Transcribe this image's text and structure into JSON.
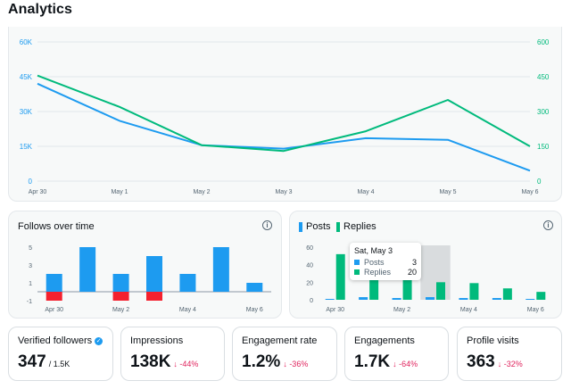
{
  "page": {
    "title": "Analytics"
  },
  "colors": {
    "blue": "#1d9bf0",
    "green": "#00ba7c",
    "red": "#f4212e",
    "grid": "#e1e6ea",
    "axis_text": "#536471"
  },
  "main_chart": {
    "left_ticks": [
      "60K",
      "45K",
      "30K",
      "15K",
      "0"
    ],
    "right_ticks": [
      "600",
      "450",
      "300",
      "150",
      "0"
    ],
    "x_labels": [
      "Apr 30",
      "May 1",
      "May 2",
      "May 3",
      "May 4",
      "May 5",
      "May 6"
    ]
  },
  "follows_card": {
    "title": "Follows over time",
    "y_ticks": [
      "5",
      "3",
      "1",
      "-1"
    ],
    "x_labels": [
      "Apr 30",
      "May 2",
      "May 4",
      "May 6"
    ]
  },
  "posts_card": {
    "legend_posts": "Posts",
    "legend_replies": "Replies",
    "y_ticks": [
      "60",
      "40",
      "20",
      "0"
    ],
    "x_labels": [
      "Apr 30",
      "May 2",
      "May 4",
      "May 6"
    ],
    "tooltip": {
      "title": "Sat, May 3",
      "posts_label": "Posts",
      "posts_value": "3",
      "replies_label": "Replies",
      "replies_value": "20"
    }
  },
  "stats": {
    "verified": {
      "label": "Verified followers",
      "value": "347",
      "sub": "/ 1.5K"
    },
    "impressions": {
      "label": "Impressions",
      "value": "138K",
      "delta": "↓ -44%"
    },
    "engagement_rate": {
      "label": "Engagement rate",
      "value": "1.2%",
      "delta": "↓ -36%"
    },
    "engagements": {
      "label": "Engagements",
      "value": "1.7K",
      "delta": "↓ -64%"
    },
    "profile_visits": {
      "label": "Profile visits",
      "value": "363",
      "delta": "↓ -32%"
    }
  },
  "chart_data": [
    {
      "type": "line",
      "x": [
        "Apr 30",
        "May 1",
        "May 2",
        "May 3",
        "May 4",
        "May 5",
        "May 6"
      ],
      "ylim": [
        0,
        60000
      ],
      "y2lim": [
        0,
        600
      ],
      "grid": true,
      "series": [
        {
          "axis": "left",
          "color": "#1d9bf0",
          "values": [
            42000,
            26000,
            15500,
            14000,
            18500,
            17800,
            4500
          ]
        },
        {
          "axis": "right",
          "color": "#00ba7c",
          "values": [
            455,
            320,
            155,
            130,
            215,
            350,
            150
          ]
        }
      ]
    },
    {
      "type": "bar",
      "title": "Follows over time",
      "categories": [
        "Apr 30",
        "May 1",
        "May 2",
        "May 3",
        "May 4",
        "May 5",
        "May 6"
      ],
      "ylim": [
        -1,
        5
      ],
      "series": [
        {
          "color": "#1d9bf0",
          "values": [
            2,
            5,
            2,
            4,
            2,
            5,
            1
          ]
        },
        {
          "color": "#f4212e",
          "values": [
            -1,
            0,
            -1,
            -1,
            0,
            0,
            0
          ]
        }
      ]
    },
    {
      "type": "bar",
      "categories": [
        "Apr 30",
        "May 1",
        "May 2",
        "May 3",
        "May 4",
        "May 5",
        "May 6"
      ],
      "ylim": [
        0,
        60
      ],
      "series": [
        {
          "name": "Posts",
          "color": "#1d9bf0",
          "values": [
            1,
            3,
            2,
            3,
            2,
            2,
            0
          ]
        },
        {
          "name": "Replies",
          "color": "#00ba7c",
          "values": [
            52,
            40,
            30,
            20,
            19,
            13,
            9
          ]
        }
      ],
      "highlight_index": 3
    }
  ]
}
